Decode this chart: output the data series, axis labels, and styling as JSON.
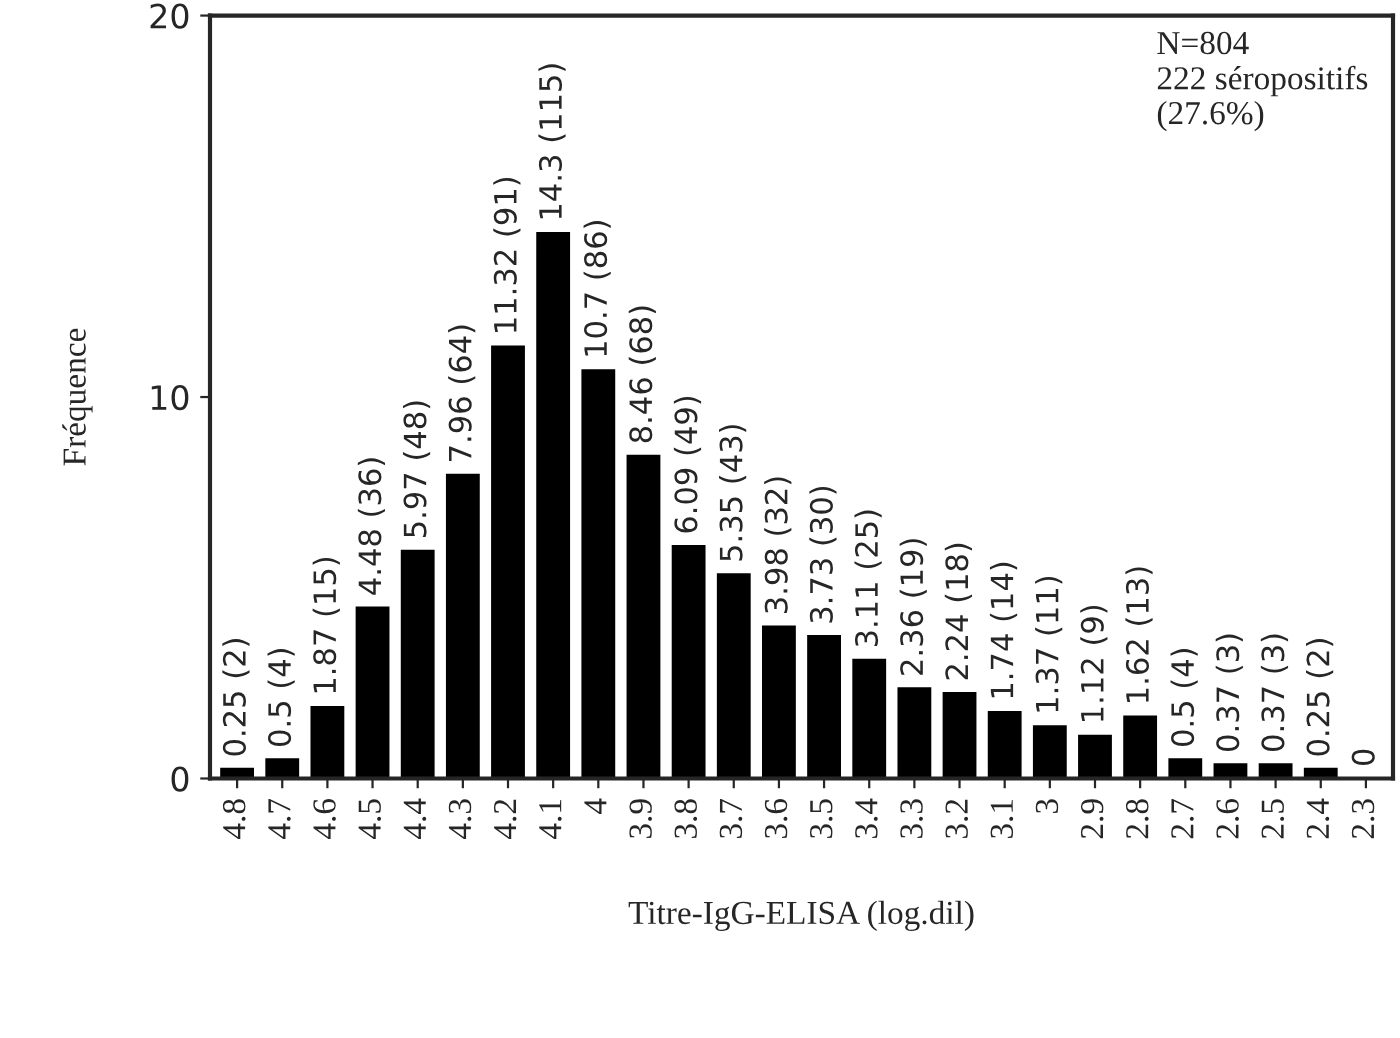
{
  "chart_data": {
    "type": "bar",
    "categories": [
      "4.8",
      "4.7",
      "4.6",
      "4.5",
      "4.4",
      "4.3",
      "4.2",
      "4.1",
      "4",
      "3.9",
      "3.8",
      "3.7",
      "3.6",
      "3.5",
      "3.4",
      "3.3",
      "3.2",
      "3.1",
      "3",
      "2.9",
      "2.8",
      "2.7",
      "2.6",
      "2.5",
      "2.4",
      "2.3"
    ],
    "values": [
      0.25,
      0.5,
      1.87,
      4.48,
      5.97,
      7.96,
      11.32,
      14.3,
      10.7,
      8.46,
      6.09,
      5.35,
      3.98,
      3.73,
      3.11,
      2.36,
      2.24,
      1.74,
      1.37,
      1.12,
      1.62,
      0.5,
      0.37,
      0.37,
      0.25,
      0
    ],
    "value_labels": [
      "0.25 (2)",
      "0.5 (4)",
      "1.87 (15)",
      "4.48 (36)",
      "5.97 (48)",
      "7.96 (64)",
      "11.32 (91)",
      "14.3 (115)",
      "10.7 (86)",
      "8.46 (68)",
      "6.09 (49)",
      "5.35 (43)",
      "3.98 (32)",
      "3.73 (30)",
      "3.11 (25)",
      "2.36 (19)",
      "2.24 (18)",
      "1.74 (14)",
      "1.37 (11)",
      "1.12 (9)",
      "1.62 (13)",
      "0.5 (4)",
      "0.37 (3)",
      "0.37 (3)",
      "0.25 (2)",
      "0"
    ],
    "color": "#000000",
    "xlabel": "Titre-IgG-ELISA (log.dil)",
    "ylabel": "Fréquence",
    "ylim": [
      0,
      20
    ],
    "yticks": [
      0,
      10,
      20
    ],
    "grid": false,
    "legend": false,
    "annotations": [
      "N=804\n222 séropositifs\n(27.6%)"
    ]
  }
}
